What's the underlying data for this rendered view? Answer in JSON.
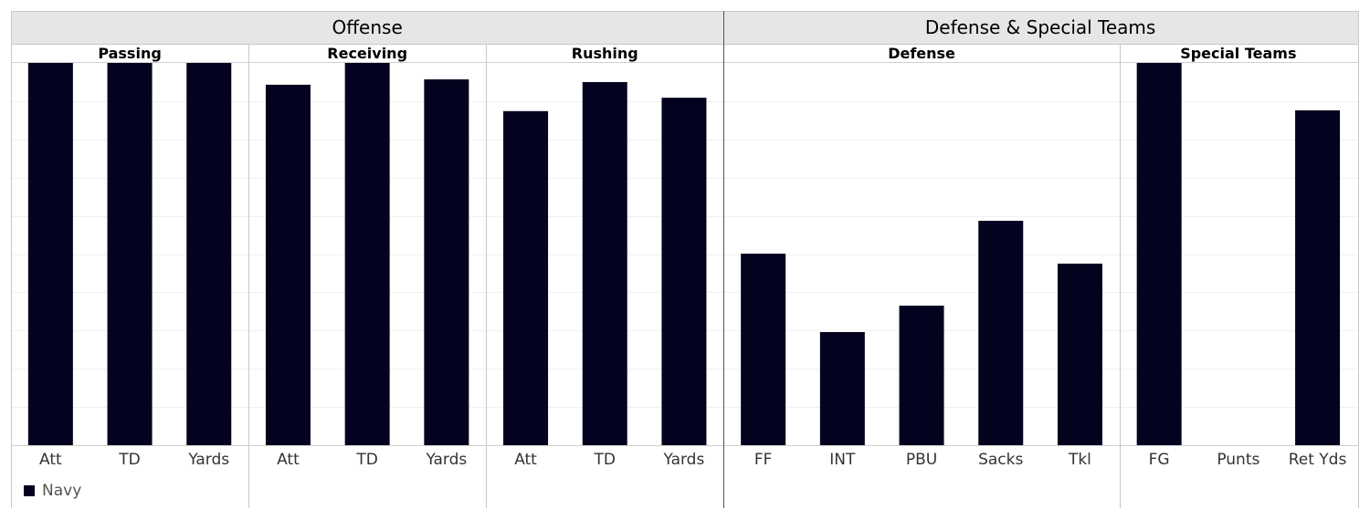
{
  "chart_data": {
    "type": "bar",
    "ylim": [
      0,
      100
    ],
    "grid": true,
    "legend": {
      "label": "Navy",
      "color": "#03031f",
      "placement": "bottom-left"
    },
    "bar_color": "#03031f",
    "groups": [
      {
        "name": "Offense",
        "sections": [
          {
            "name": "Passing",
            "categories": [
              "Att",
              "TD",
              "Yards"
            ],
            "values": [
              100,
              100,
              100
            ]
          },
          {
            "name": "Receiving",
            "categories": [
              "Att",
              "TD",
              "Yards"
            ],
            "values": [
              94.3,
              100,
              95.7
            ]
          },
          {
            "name": "Rushing",
            "categories": [
              "Att",
              "TD",
              "Yards"
            ],
            "values": [
              87.4,
              95.0,
              90.9
            ]
          }
        ]
      },
      {
        "name": "Defense & Special Teams",
        "sections": [
          {
            "name": "Defense",
            "categories": [
              "FF",
              "INT",
              "PBU",
              "Sacks",
              "Tkl"
            ],
            "values": [
              50.1,
              29.6,
              36.5,
              58.7,
              47.5
            ]
          },
          {
            "name": "Special Teams",
            "categories": [
              "FG",
              "Punts",
              "Ret Yds"
            ],
            "values": [
              100,
              0,
              87.6
            ]
          }
        ]
      }
    ]
  }
}
